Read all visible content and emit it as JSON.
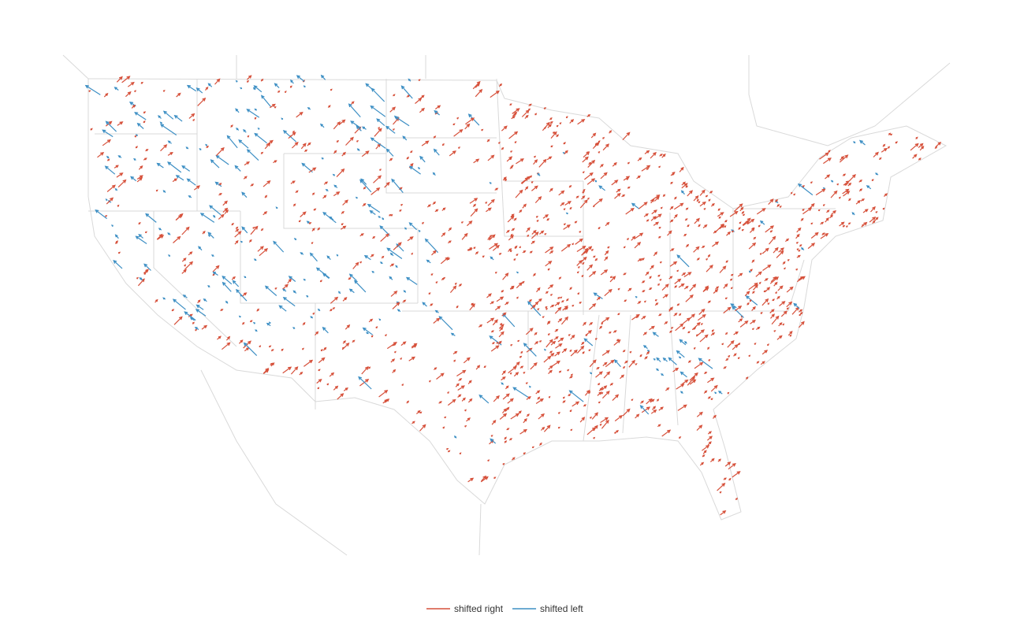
{
  "legend": [
    {
      "label": "shifted right",
      "color": "#d6503a"
    },
    {
      "label": "shifted left",
      "color": "#3d8fc4"
    }
  ]
}
